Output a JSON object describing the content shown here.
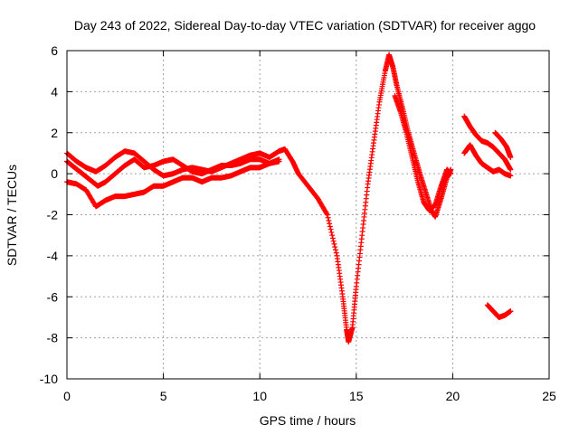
{
  "chart_data": {
    "type": "scatter",
    "title": "Day 243 of 2022, Sidereal Day-to-day VTEC variation (SDTVAR) for receiver aggo",
    "xlabel": "GPS time / hours",
    "ylabel": "SDTVAR / TECUs",
    "xlim": [
      0,
      25
    ],
    "ylim": [
      -10,
      6
    ],
    "xticks": [
      0,
      5,
      10,
      15,
      20,
      25
    ],
    "yticks": [
      -10,
      -8,
      -6,
      -4,
      -2,
      0,
      2,
      4,
      6
    ],
    "grid": true,
    "marker": "+",
    "color": "#ff0000",
    "series": [
      {
        "name": "arc-1",
        "points": [
          [
            0,
            1.0
          ],
          [
            0.5,
            0.6
          ],
          [
            1.0,
            0.3
          ],
          [
            1.5,
            0.1
          ],
          [
            2.0,
            0.4
          ],
          [
            2.5,
            0.8
          ],
          [
            3.0,
            1.1
          ],
          [
            3.5,
            1.0
          ],
          [
            4.0,
            0.6
          ],
          [
            4.5,
            0.2
          ],
          [
            5.0,
            -0.1
          ],
          [
            5.5,
            0.0
          ],
          [
            6.0,
            0.2
          ],
          [
            6.5,
            0.3
          ],
          [
            7.0,
            0.2
          ],
          [
            7.5,
            0.1
          ],
          [
            8.0,
            0.3
          ],
          [
            8.5,
            0.5
          ],
          [
            9.0,
            0.7
          ],
          [
            9.5,
            0.9
          ],
          [
            10.0,
            1.0
          ],
          [
            10.5,
            0.8
          ],
          [
            11.0,
            1.1
          ],
          [
            11.3,
            1.2
          ],
          [
            11.7,
            0.6
          ],
          [
            12.0,
            0.0
          ],
          [
            12.5,
            -0.6
          ],
          [
            13.0,
            -1.2
          ],
          [
            13.5,
            -2.0
          ],
          [
            14.0,
            -4.0
          ],
          [
            14.3,
            -6.0
          ],
          [
            14.5,
            -7.6
          ],
          [
            14.6,
            -8.2
          ],
          [
            14.8,
            -7.5
          ],
          [
            15.0,
            -5.5
          ],
          [
            15.3,
            -3.0
          ],
          [
            15.6,
            -0.5
          ],
          [
            15.9,
            1.5
          ],
          [
            16.2,
            3.5
          ],
          [
            16.5,
            5.0
          ],
          [
            16.7,
            5.8
          ],
          [
            16.9,
            5.2
          ],
          [
            17.1,
            4.3
          ],
          [
            17.4,
            3.2
          ],
          [
            17.7,
            2.0
          ],
          [
            18.0,
            1.0
          ],
          [
            18.3,
            0.0
          ],
          [
            18.6,
            -0.9
          ],
          [
            18.9,
            -1.8
          ],
          [
            19.1,
            -2.1
          ],
          [
            19.4,
            -1.2
          ],
          [
            19.7,
            -0.2
          ],
          [
            19.9,
            0.2
          ]
        ]
      },
      {
        "name": "arc-2",
        "points": [
          [
            0,
            0.6
          ],
          [
            0.4,
            0.3
          ],
          [
            0.8,
            0.0
          ],
          [
            1.2,
            -0.3
          ],
          [
            1.6,
            -0.6
          ],
          [
            2.0,
            -0.4
          ],
          [
            2.5,
            0.0
          ],
          [
            3.0,
            0.4
          ],
          [
            3.5,
            0.7
          ],
          [
            4.0,
            0.3
          ],
          [
            4.5,
            0.4
          ],
          [
            5.0,
            0.6
          ],
          [
            5.5,
            0.7
          ],
          [
            6.0,
            0.4
          ],
          [
            6.5,
            0.1
          ],
          [
            7.0,
            0.0
          ],
          [
            7.5,
            0.2
          ],
          [
            8.0,
            0.4
          ],
          [
            8.5,
            0.4
          ],
          [
            9.0,
            0.5
          ],
          [
            9.5,
            0.7
          ],
          [
            10.0,
            0.7
          ],
          [
            10.5,
            0.5
          ],
          [
            11.0,
            0.6
          ]
        ]
      },
      {
        "name": "arc-3",
        "points": [
          [
            0,
            -0.4
          ],
          [
            0.5,
            -0.5
          ],
          [
            1.0,
            -0.8
          ],
          [
            1.5,
            -1.6
          ],
          [
            2.0,
            -1.3
          ],
          [
            2.5,
            -1.1
          ],
          [
            3.0,
            -1.1
          ],
          [
            3.5,
            -1.0
          ],
          [
            4.0,
            -0.9
          ],
          [
            4.5,
            -0.6
          ],
          [
            5.0,
            -0.6
          ],
          [
            5.5,
            -0.4
          ],
          [
            6.0,
            -0.2
          ],
          [
            6.5,
            -0.2
          ],
          [
            7.0,
            -0.4
          ],
          [
            7.5,
            -0.2
          ],
          [
            8.0,
            -0.2
          ],
          [
            8.5,
            -0.1
          ],
          [
            9.0,
            0.1
          ],
          [
            9.5,
            0.3
          ],
          [
            10.0,
            0.3
          ],
          [
            10.5,
            0.5
          ],
          [
            11.0,
            0.7
          ]
        ]
      },
      {
        "name": "arc-4",
        "points": [
          [
            17.0,
            3.8
          ],
          [
            17.3,
            3.0
          ],
          [
            17.6,
            2.0
          ],
          [
            17.9,
            0.8
          ],
          [
            18.2,
            -0.4
          ],
          [
            18.5,
            -1.4
          ],
          [
            18.8,
            -1.8
          ],
          [
            19.1,
            -1.5
          ],
          [
            19.4,
            -0.6
          ],
          [
            19.7,
            0.2
          ],
          [
            19.9,
            0.0
          ]
        ]
      },
      {
        "name": "arc-5",
        "points": [
          [
            20.6,
            2.8
          ],
          [
            20.9,
            2.3
          ],
          [
            21.2,
            1.9
          ],
          [
            21.5,
            1.6
          ],
          [
            21.8,
            1.5
          ],
          [
            22.1,
            1.3
          ],
          [
            22.4,
            1.0
          ],
          [
            22.7,
            0.7
          ],
          [
            23.0,
            0.2
          ]
        ]
      },
      {
        "name": "arc-6",
        "points": [
          [
            20.6,
            1.0
          ],
          [
            20.9,
            1.4
          ],
          [
            21.2,
            0.9
          ],
          [
            21.5,
            0.5
          ],
          [
            21.8,
            0.3
          ],
          [
            22.1,
            0.1
          ],
          [
            22.4,
            0.2
          ],
          [
            22.7,
            0.0
          ],
          [
            23.0,
            -0.1
          ]
        ]
      },
      {
        "name": "arc-7",
        "points": [
          [
            22.2,
            2.0
          ],
          [
            22.5,
            1.7
          ],
          [
            22.8,
            1.3
          ],
          [
            23.0,
            0.8
          ]
        ]
      },
      {
        "name": "arc-8",
        "points": [
          [
            21.8,
            -6.4
          ],
          [
            22.1,
            -6.7
          ],
          [
            22.4,
            -7.0
          ],
          [
            22.7,
            -6.9
          ],
          [
            23.0,
            -6.7
          ]
        ]
      }
    ]
  }
}
